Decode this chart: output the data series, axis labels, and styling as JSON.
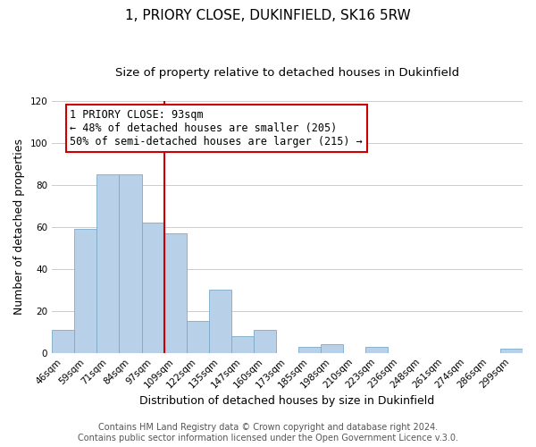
{
  "title": "1, PRIORY CLOSE, DUKINFIELD, SK16 5RW",
  "subtitle": "Size of property relative to detached houses in Dukinfield",
  "xlabel": "Distribution of detached houses by size in Dukinfield",
  "ylabel": "Number of detached properties",
  "bar_labels": [
    "46sqm",
    "59sqm",
    "71sqm",
    "84sqm",
    "97sqm",
    "109sqm",
    "122sqm",
    "135sqm",
    "147sqm",
    "160sqm",
    "173sqm",
    "185sqm",
    "198sqm",
    "210sqm",
    "223sqm",
    "236sqm",
    "248sqm",
    "261sqm",
    "274sqm",
    "286sqm",
    "299sqm"
  ],
  "bar_values": [
    11,
    59,
    85,
    85,
    62,
    57,
    15,
    30,
    8,
    11,
    0,
    3,
    4,
    0,
    3,
    0,
    0,
    0,
    0,
    0,
    2
  ],
  "bar_color": "#b8d0e8",
  "bar_edge_color": "#7aaac8",
  "vline_x_index": 4,
  "vline_color": "#cc0000",
  "annotation_box_text": "1 PRIORY CLOSE: 93sqm\n← 48% of detached houses are smaller (205)\n50% of semi-detached houses are larger (215) →",
  "annotation_box_edge_color": "#cc0000",
  "annotation_box_bg": "#ffffff",
  "ylim": [
    0,
    120
  ],
  "yticks": [
    0,
    20,
    40,
    60,
    80,
    100,
    120
  ],
  "footer_text": "Contains HM Land Registry data © Crown copyright and database right 2024.\nContains public sector information licensed under the Open Government Licence v.3.0.",
  "background_color": "#ffffff",
  "grid_color": "#cccccc",
  "title_fontsize": 11,
  "subtitle_fontsize": 9.5,
  "axis_label_fontsize": 9,
  "tick_fontsize": 7.5,
  "annotation_fontsize": 8.5,
  "footer_fontsize": 7
}
